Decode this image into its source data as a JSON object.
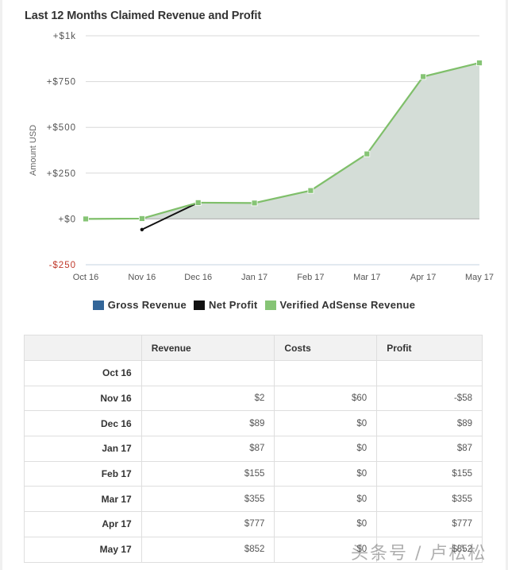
{
  "header": {
    "title": "Last 12 Months Claimed Revenue and Profit"
  },
  "colors": {
    "gross_revenue": "#336699",
    "net_profit": "#111111",
    "adsense_line": "#7fbf6a",
    "adsense_marker": "#86c475",
    "adsense_fill": "#d4ddd7",
    "negative_tick": "#c0392b",
    "grid": "#d8d8d8"
  },
  "legend": [
    {
      "label": "Gross Revenue",
      "color": "#336699"
    },
    {
      "label": "Net Profit",
      "color": "#111111"
    },
    {
      "label": "Verified AdSense Revenue",
      "color": "#86c475"
    }
  ],
  "chart_data": {
    "type": "area",
    "title": "Last 12 Months Claimed Revenue and Profit",
    "xlabel": "",
    "ylabel": "Amount USD",
    "ylim": [
      -250,
      1000
    ],
    "yticks": [
      -250,
      0,
      250,
      500,
      750,
      1000
    ],
    "ytick_labels": [
      "-$250",
      "+$0",
      "+$250",
      "+$500",
      "+$750",
      "+$1k"
    ],
    "categories": [
      "Oct 16",
      "Nov 16",
      "Dec 16",
      "Jan 17",
      "Feb 17",
      "Mar 17",
      "Apr 17",
      "May 17"
    ],
    "grid": true,
    "legend_position": "bottom",
    "series": [
      {
        "name": "Gross Revenue",
        "values": [
          null,
          null,
          null,
          null,
          null,
          null,
          null,
          null
        ]
      },
      {
        "name": "Net Profit",
        "values": [
          null,
          -58,
          89,
          null,
          null,
          null,
          null,
          null
        ]
      },
      {
        "name": "Verified AdSense Revenue",
        "values": [
          0,
          2,
          89,
          87,
          155,
          355,
          777,
          852
        ]
      }
    ]
  },
  "table": {
    "headers": [
      "",
      "Revenue",
      "Costs",
      "Profit"
    ],
    "rows": [
      {
        "month": "Oct 16",
        "revenue": "",
        "costs": "",
        "profit": ""
      },
      {
        "month": "Nov 16",
        "revenue": "$2",
        "costs": "$60",
        "profit": "-$58"
      },
      {
        "month": "Dec 16",
        "revenue": "$89",
        "costs": "$0",
        "profit": "$89"
      },
      {
        "month": "Jan 17",
        "revenue": "$87",
        "costs": "$0",
        "profit": "$87"
      },
      {
        "month": "Feb 17",
        "revenue": "$155",
        "costs": "$0",
        "profit": "$155"
      },
      {
        "month": "Mar 17",
        "revenue": "$355",
        "costs": "$0",
        "profit": "$355"
      },
      {
        "month": "Apr 17",
        "revenue": "$777",
        "costs": "$0",
        "profit": "$777"
      },
      {
        "month": "May 17",
        "revenue": "$852",
        "costs": "$0",
        "profit": "$852"
      }
    ]
  },
  "watermark": "头条号 / 卢松松"
}
